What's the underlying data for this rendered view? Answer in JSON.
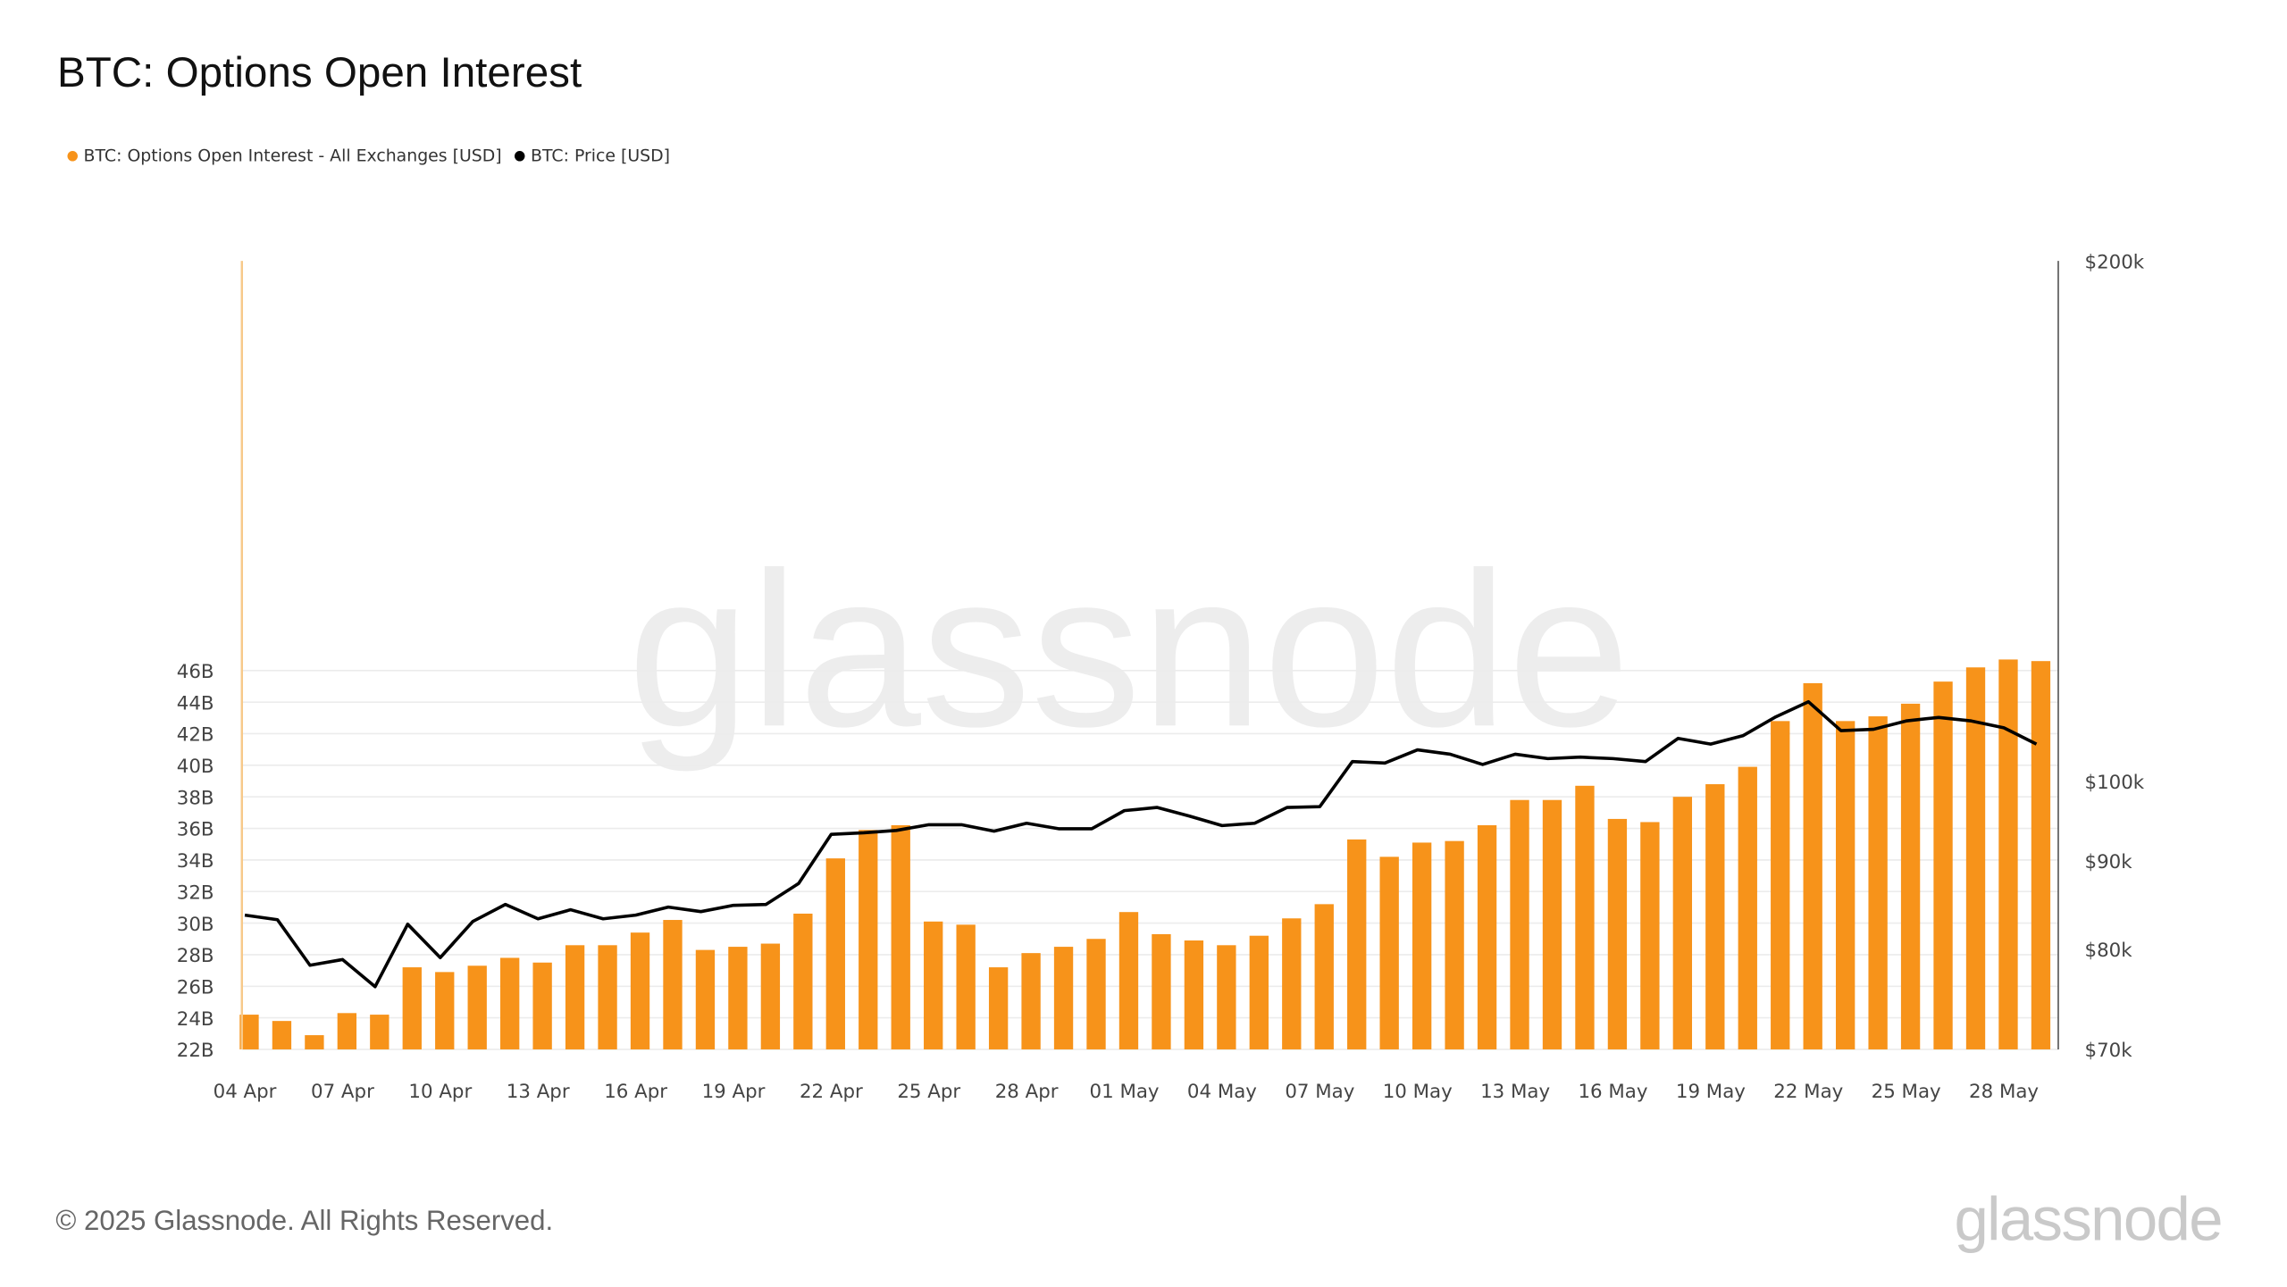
{
  "title": "BTC: Options Open Interest",
  "legend": [
    {
      "label": "BTC: Options Open Interest - All Exchanges [USD]",
      "color": "#f7931a"
    },
    {
      "label": "BTC: Price [USD]",
      "color": "#000000"
    }
  ],
  "footer": "© 2025 Glassnode. All Rights Reserved.",
  "watermark": "glassnode",
  "logo": "glassnode",
  "chart_data": {
    "type": "bar",
    "title": "BTC: Options Open Interest",
    "x_start": "2025-04-04",
    "x_tick_labels": [
      "04 Apr",
      "07 Apr",
      "10 Apr",
      "13 Apr",
      "16 Apr",
      "19 Apr",
      "22 Apr",
      "25 Apr",
      "28 Apr",
      "01 May",
      "04 May",
      "07 May",
      "10 May",
      "13 May",
      "16 May",
      "19 May",
      "22 May",
      "25 May",
      "28 May"
    ],
    "y_left": {
      "min": 22,
      "max": 47,
      "ticks": [
        22,
        24,
        26,
        28,
        30,
        32,
        34,
        36,
        38,
        40,
        42,
        44,
        46
      ],
      "tick_labels": [
        "22B",
        "24B",
        "26B",
        "28B",
        "30B",
        "32B",
        "34B",
        "36B",
        "38B",
        "40B",
        "42B",
        "44B",
        "46B"
      ],
      "unit": "B USD"
    },
    "y_right": {
      "scale": "log",
      "min": 70,
      "max": 200,
      "ticks": [
        70,
        80,
        90,
        100,
        200
      ],
      "tick_labels": [
        "$70k",
        "$80k",
        "$90k",
        "$100k",
        "$200k"
      ],
      "unit": "k USD"
    },
    "grid": true,
    "legend_position": "top-left",
    "series": [
      {
        "name": "BTC: Options Open Interest - All Exchanges [USD]",
        "type": "bar",
        "axis": "left",
        "color": "#f7931a",
        "values": [
          24.2,
          23.8,
          22.9,
          24.3,
          24.2,
          27.2,
          26.9,
          27.3,
          27.8,
          27.5,
          28.6,
          28.6,
          29.4,
          30.2,
          28.3,
          28.5,
          28.7,
          30.6,
          34.1,
          35.9,
          36.2,
          30.1,
          29.9,
          27.2,
          28.1,
          28.5,
          29.0,
          30.7,
          29.3,
          28.9,
          28.6,
          29.2,
          30.3,
          31.2,
          35.3,
          34.2,
          35.1,
          35.2,
          36.2,
          37.8,
          37.8,
          38.7,
          36.6,
          36.4,
          38.0,
          38.8,
          39.9,
          42.8,
          45.2,
          42.8,
          43.1,
          43.9,
          45.3,
          46.2,
          46.7,
          46.6
        ]
      },
      {
        "name": "BTC: Price [USD]",
        "type": "line",
        "axis": "right",
        "color": "#000000",
        "values": [
          83.7,
          83.2,
          78.3,
          78.9,
          76.1,
          82.7,
          79.1,
          83.0,
          84.9,
          83.3,
          84.3,
          83.3,
          83.7,
          84.6,
          84.1,
          84.8,
          84.9,
          87.3,
          93.2,
          93.4,
          93.7,
          94.4,
          94.4,
          93.6,
          94.6,
          93.9,
          93.9,
          96.2,
          96.6,
          95.5,
          94.3,
          94.6,
          96.6,
          96.7,
          102.7,
          102.5,
          104.3,
          103.7,
          102.3,
          103.7,
          103.1,
          103.3,
          103.1,
          102.7,
          105.9,
          105.1,
          106.3,
          109.0,
          111.2,
          107.0,
          107.2,
          108.4,
          108.9,
          108.4,
          107.4,
          105.1
        ]
      }
    ]
  }
}
